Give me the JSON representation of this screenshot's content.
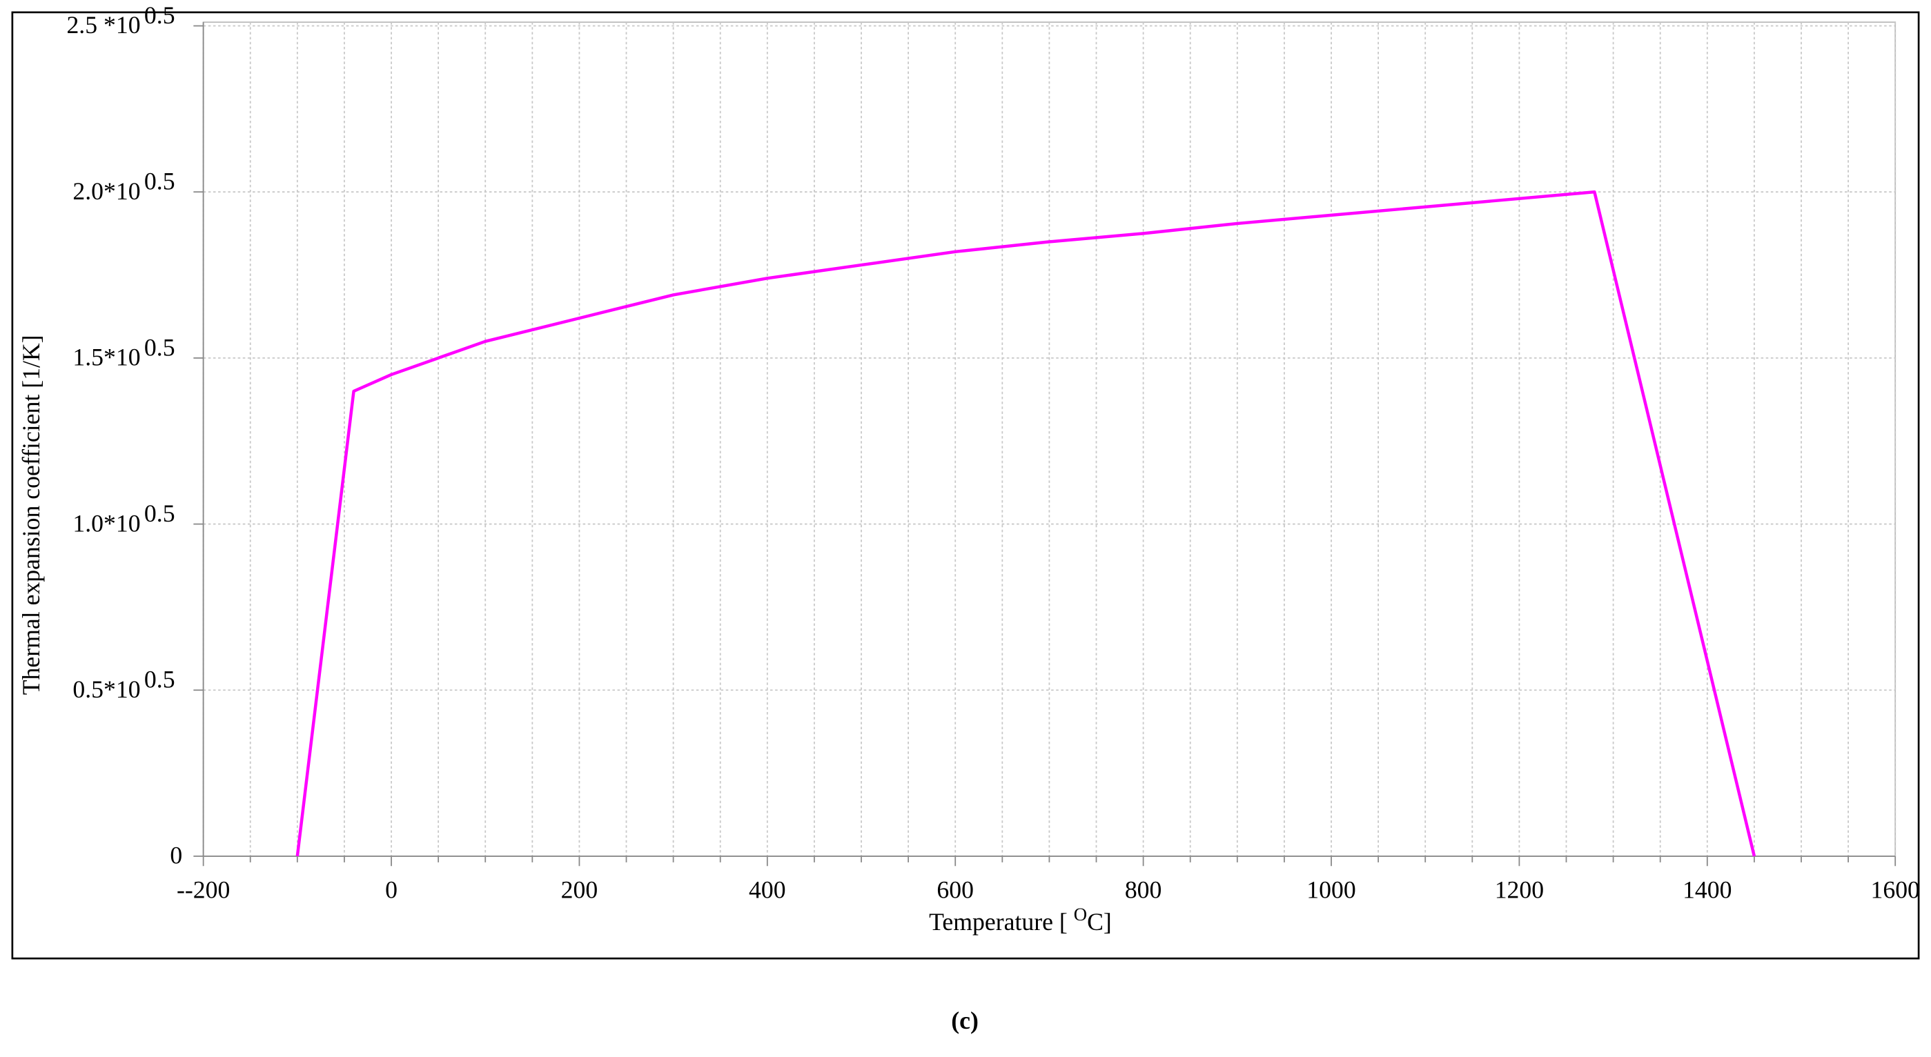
{
  "chart_data": {
    "type": "line",
    "ylabel": "Thermal expansion coefficient [1/K]",
    "xlabel": {
      "text": "Temperature [ ",
      "superscript": "O",
      "suffix": "C]"
    },
    "caption": "(c)",
    "x": [
      -100,
      -40,
      0,
      100,
      200,
      300,
      400,
      500,
      600,
      700,
      800,
      900,
      1000,
      1100,
      1200,
      1280,
      1450
    ],
    "series": [
      {
        "color": "#ff00ff",
        "values": [
          0,
          1.4,
          1.45,
          1.55,
          1.62,
          1.69,
          1.74,
          1.78,
          1.82,
          1.85,
          1.875,
          1.905,
          1.93,
          1.955,
          1.98,
          2.0,
          0
        ]
      }
    ],
    "xlim": [
      -200,
      1600
    ],
    "xticks": [
      {
        "value": -200,
        "label": "--200"
      },
      0,
      200,
      400,
      600,
      800,
      1000,
      1200,
      1400,
      1600
    ],
    "xminorticks": [
      -150,
      -100,
      -50,
      50,
      100,
      150,
      250,
      300,
      350,
      450,
      500,
      550,
      650,
      700,
      750,
      850,
      900,
      950,
      1050,
      1100,
      1150,
      1250,
      1300,
      1350,
      1450,
      1500,
      1550
    ],
    "ylim": [
      0,
      2.5
    ],
    "yticks": [
      0,
      {
        "value": 0.5,
        "label": "0.5*10",
        "superscript": "0.5"
      },
      {
        "value": 1.0,
        "label": "1.0*10",
        "superscript": "0.5"
      },
      {
        "value": 1.5,
        "label": "1.5*10",
        "superscript": "0.5"
      },
      {
        "value": 2.0,
        "label": "2.0*10",
        "superscript": "0.5"
      },
      {
        "value": 2.5,
        "label": "2.5 *10",
        "superscript": "0.5"
      }
    ],
    "grid": true
  }
}
